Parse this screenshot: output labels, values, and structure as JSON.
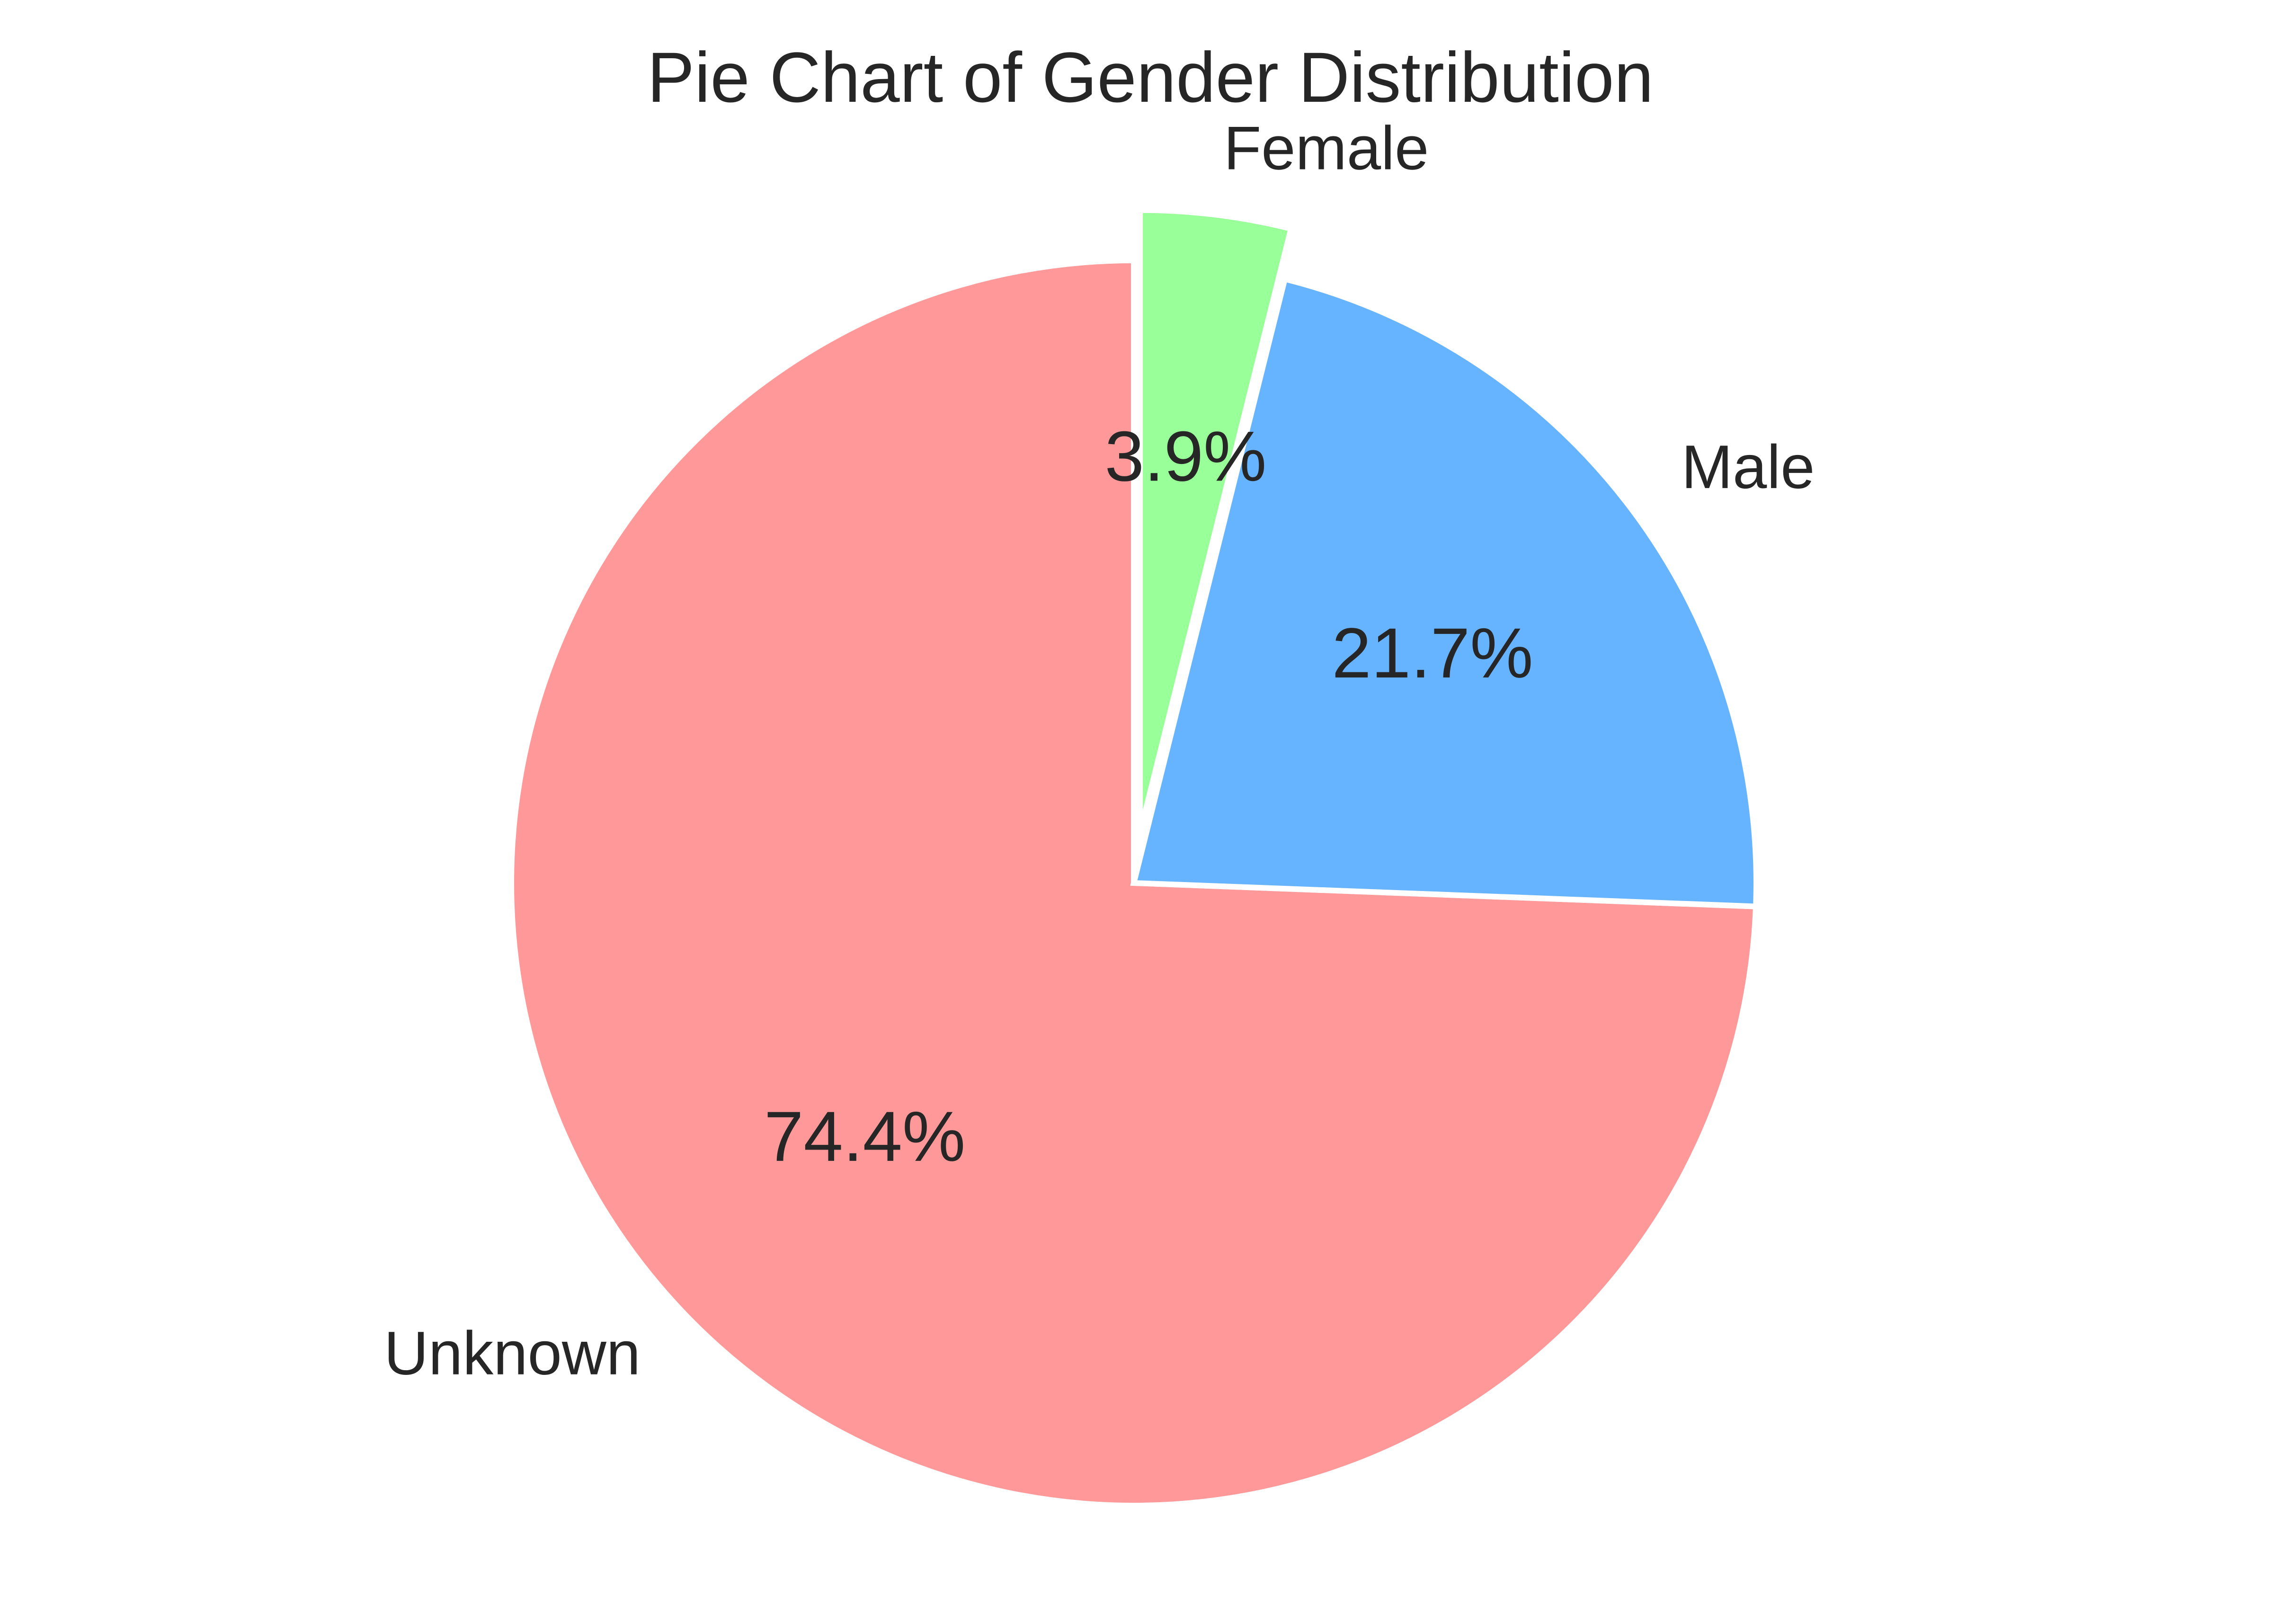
{
  "chart_data": {
    "type": "pie",
    "title": "Pie Chart of Gender Distribution",
    "slices": [
      {
        "name": "Unknown",
        "value": 74.4,
        "percent_label": "74.4%",
        "color": "#ff9999",
        "exploded": false
      },
      {
        "name": "Male",
        "value": 21.7,
        "percent_label": "21.7%",
        "color": "#66b3ff",
        "exploded": false
      },
      {
        "name": "Female",
        "value": 3.9,
        "percent_label": "3.9%",
        "color": "#99ff99",
        "exploded": true
      }
    ],
    "start_angle_deg": 90,
    "direction": "counterclockwise",
    "legend": "none",
    "grid": false
  }
}
